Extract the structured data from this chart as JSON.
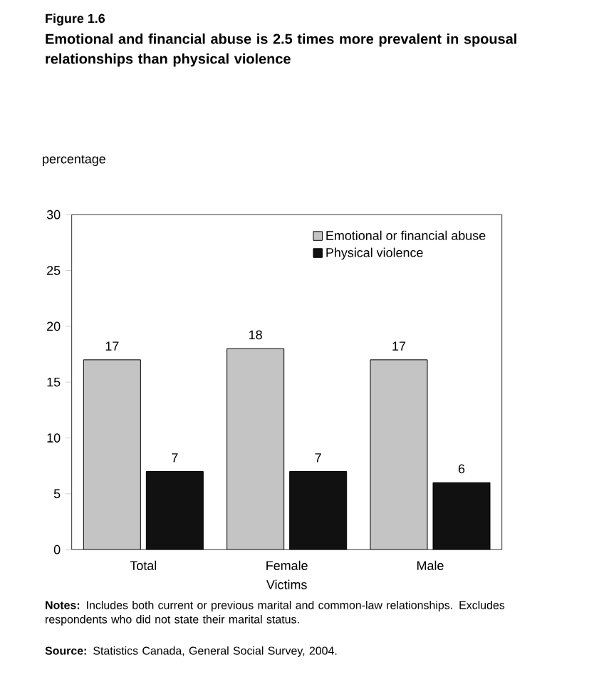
{
  "chart_data": {
    "type": "bar",
    "title": "Figure 1.6",
    "subtitle": "Emotional and financial abuse is 2.5 times more prevalent in spousal relationships than physical violence",
    "ylabel": "percentage",
    "xlabel": "Victims",
    "categories": [
      "Total",
      "Female",
      "Male"
    ],
    "series": [
      {
        "name": "Emotional or financial abuse",
        "color": "#c4c4c4",
        "values": [
          17,
          18,
          17
        ]
      },
      {
        "name": "Physical violence",
        "color": "#111111",
        "values": [
          7,
          7,
          6
        ]
      }
    ],
    "ylim": [
      0,
      30
    ],
    "yticks": [
      0,
      5,
      10,
      15,
      20,
      25,
      30
    ],
    "grid": false,
    "legend": "top right",
    "data_labels": true,
    "annotations": [
      "**Notes:** Includes both current or previous marital and common-law relationships. Excludes respondents who did not state their marital status.",
      "**Source:** Statistics Canada, General Social Survey, 2004."
    ]
  }
}
